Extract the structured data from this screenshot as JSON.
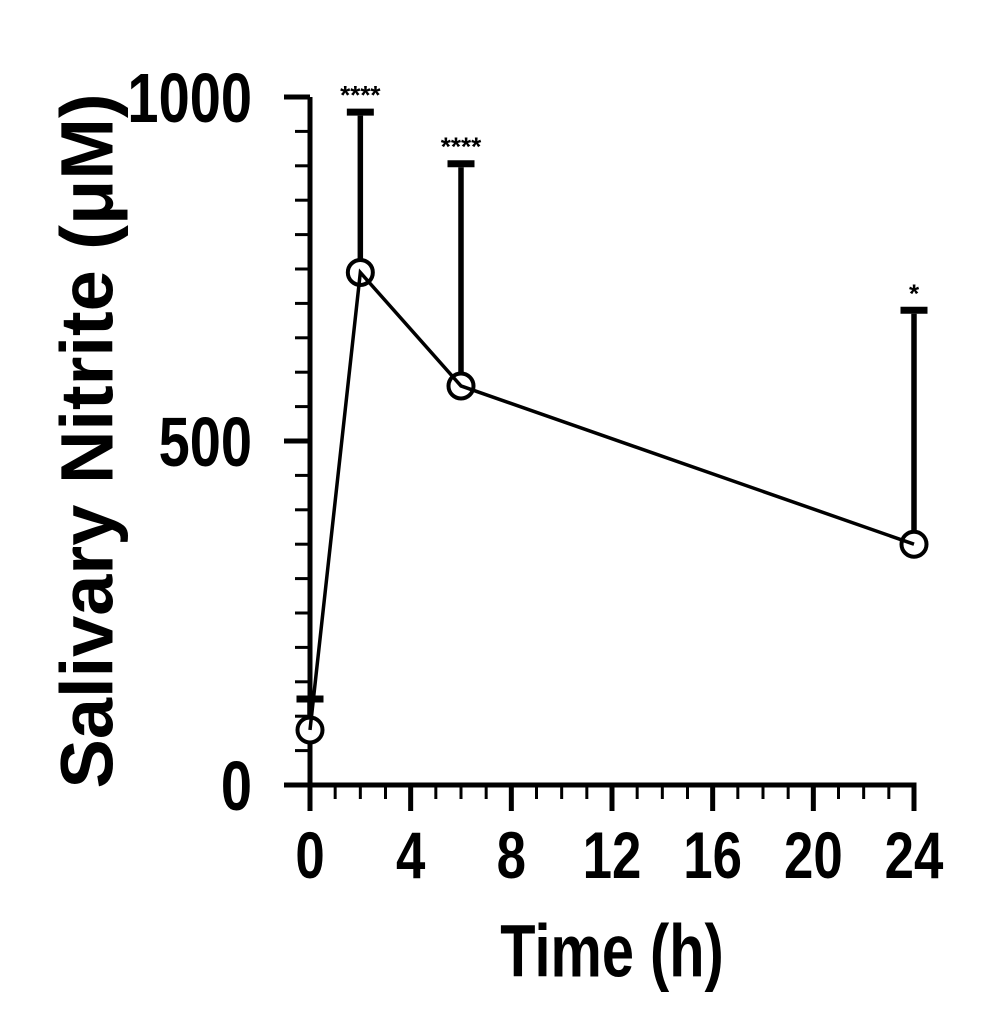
{
  "chart_data": {
    "type": "line",
    "title": "",
    "xlabel": "Time (h)",
    "ylabel": "Salivary Nitrite (μM)",
    "x": [
      0,
      2,
      6,
      24
    ],
    "series": [
      {
        "name": "Salivary Nitrite",
        "values": [
          80,
          745,
          580,
          350
        ],
        "error_upper_sd": [
          45,
          233,
          323,
          340
        ],
        "error_bar_tops": [
          125,
          978,
          903,
          690
        ]
      }
    ],
    "annotations": [
      {
        "x": 2,
        "label": "****"
      },
      {
        "x": 6,
        "label": "****"
      },
      {
        "x": 24,
        "label": "*"
      }
    ],
    "xlim": [
      0,
      24
    ],
    "ylim": [
      0,
      1000
    ],
    "x_major_ticks": [
      0,
      4,
      8,
      12,
      16,
      20,
      24
    ],
    "x_tick_labels": [
      "0",
      "4",
      "8",
      "12",
      "16",
      "20",
      "24"
    ],
    "x_minor_step": 1,
    "y_major_ticks": [
      0,
      500,
      1000
    ],
    "y_tick_labels": [
      "0",
      "500",
      "1000"
    ],
    "y_minor_step": 50,
    "grid": false,
    "legend": "none",
    "marker": "open-circle",
    "error_bars": "upper-only-sd",
    "colors": {
      "line": "#000000",
      "marker_fill": "#ffffff",
      "text": "#000000",
      "background": "#ffffff"
    }
  }
}
